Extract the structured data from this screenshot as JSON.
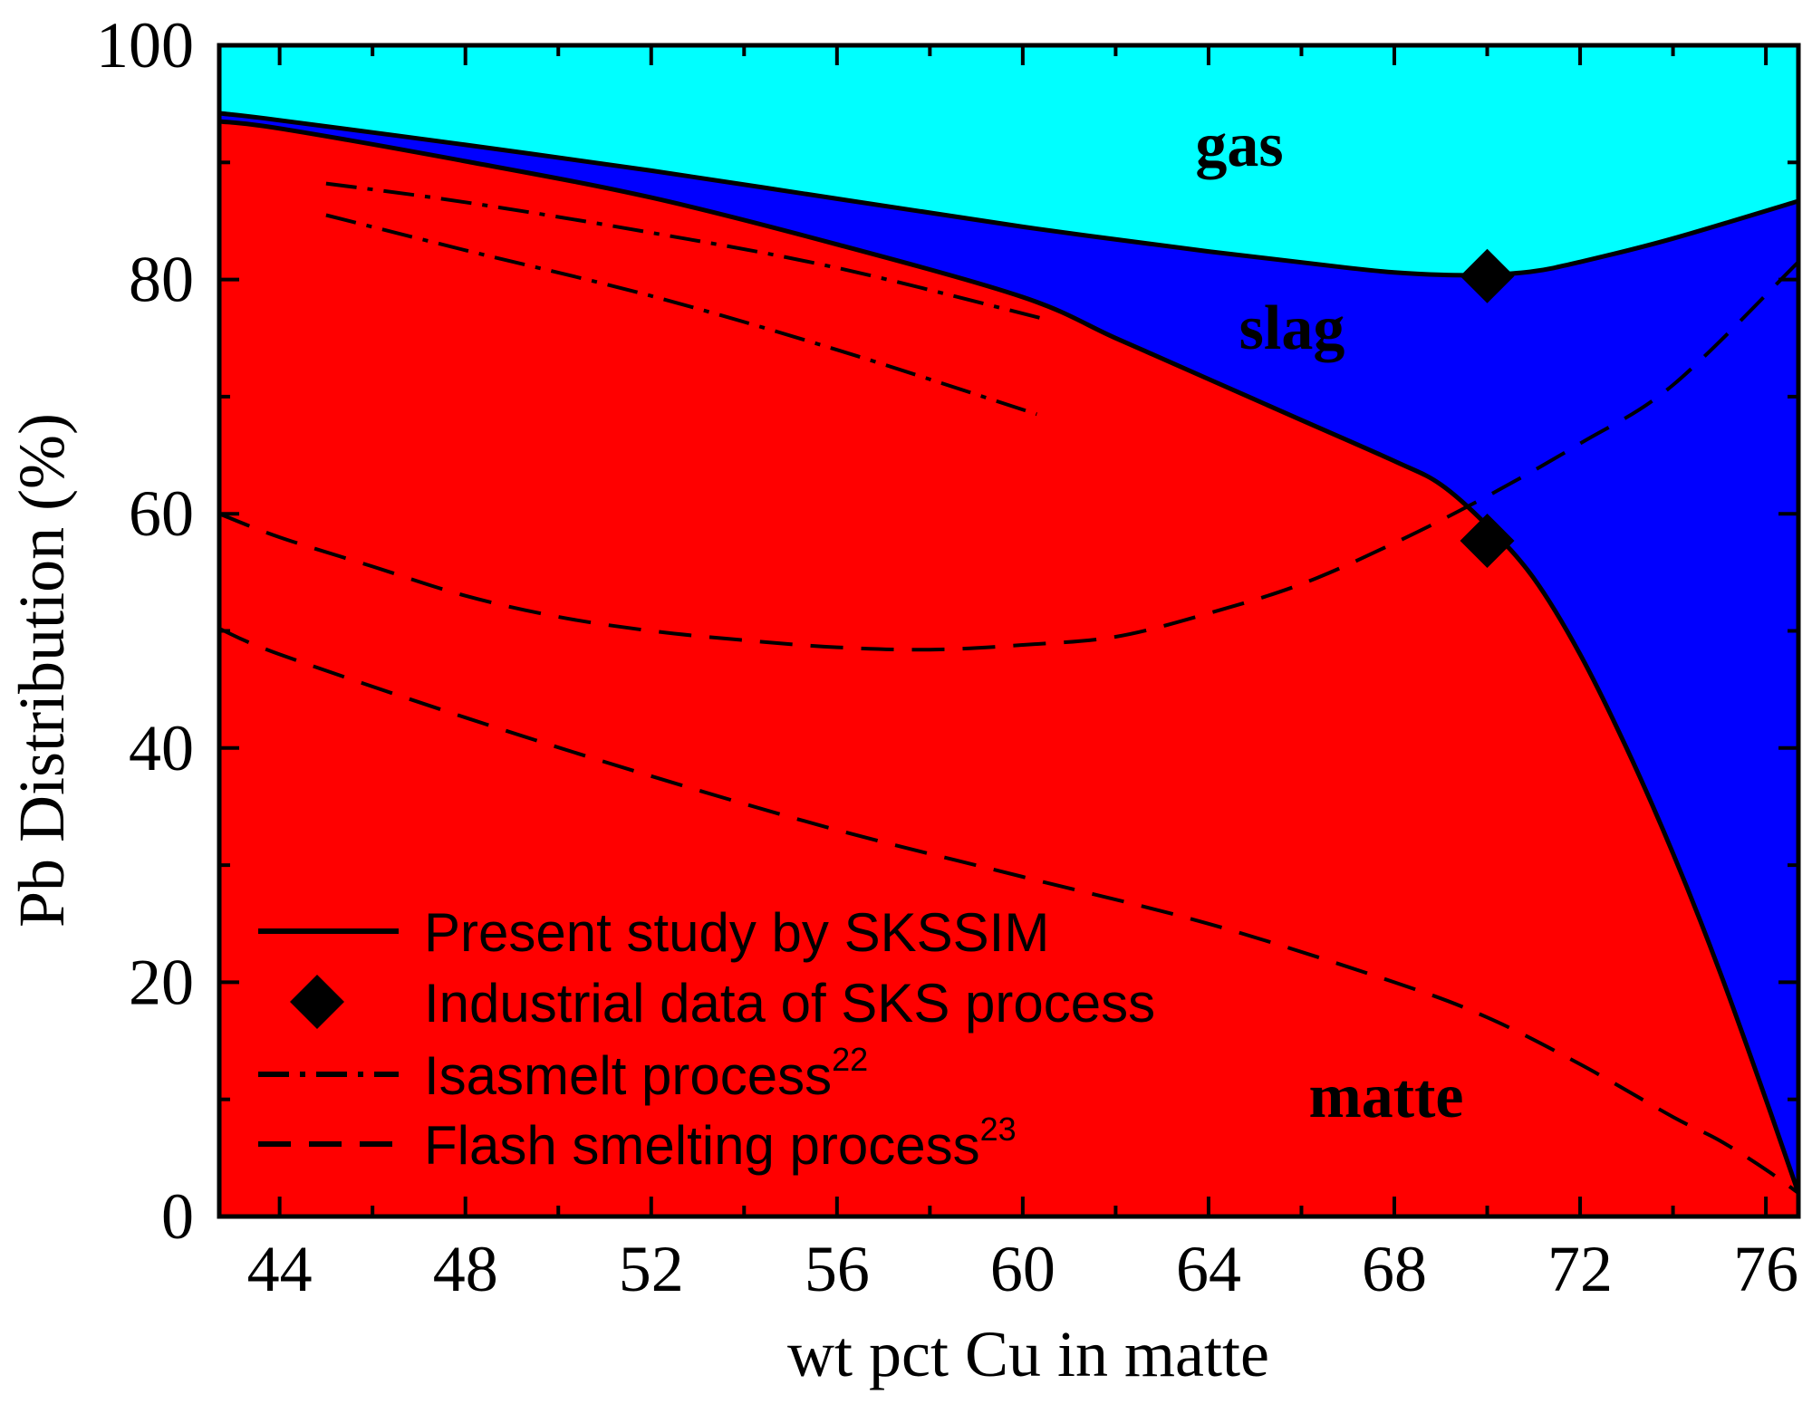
{
  "chart_data": {
    "type": "area",
    "title": "",
    "xlabel": "wt pct Cu in matte",
    "ylabel": "Pb Distribution (%)",
    "xlim": [
      42.7,
      76.7
    ],
    "ylim": [
      0,
      100
    ],
    "xticks": [
      44,
      48,
      52,
      56,
      60,
      64,
      68,
      72,
      76
    ],
    "yticks": [
      0,
      20,
      40,
      60,
      80,
      100
    ],
    "colors": {
      "gas": "#00ffff",
      "slag": "#0000ff",
      "matte": "#ff0000",
      "line": "#000000"
    },
    "regions": [
      {
        "name": "gas",
        "label": "gas"
      },
      {
        "name": "slag",
        "label": "slag"
      },
      {
        "name": "matte",
        "label": "matte"
      }
    ],
    "series": [
      {
        "name": "Present study by SKSSIM (gas/slag boundary)",
        "style": "solid",
        "x": [
          42.7,
          44,
          48,
          52,
          56,
          60,
          64,
          67,
          68,
          69,
          70,
          71,
          72,
          74,
          76.7
        ],
        "y": [
          94.2,
          93.6,
          91.5,
          89.3,
          86.9,
          84.5,
          82.4,
          81.0,
          80.6,
          80.4,
          80.4,
          80.7,
          81.5,
          83.5,
          86.7
        ]
      },
      {
        "name": "Present study by SKSSIM (slag/matte boundary)",
        "style": "solid",
        "x": [
          42.7,
          44,
          48,
          52,
          56,
          60,
          62,
          64,
          66,
          68,
          69,
          70,
          71,
          72,
          73,
          74,
          75,
          76,
          76.7
        ],
        "y": [
          93.5,
          92.9,
          90.1,
          87.0,
          83.0,
          78.5,
          75.0,
          71.5,
          68.0,
          64.5,
          62.5,
          59.0,
          54.5,
          48.0,
          40.0,
          31.0,
          21.0,
          10.0,
          2.0
        ]
      },
      {
        "name": "Industrial data of SKS process",
        "style": "marker",
        "marker": "diamond",
        "x": [
          70.0,
          70.0
        ],
        "y": [
          80.3,
          57.7
        ]
      },
      {
        "name": "Isasmelt process (upper)",
        "style": "dashdot",
        "x": [
          45.0,
          48,
          52,
          56,
          60.5
        ],
        "y": [
          88.2,
          86.6,
          84.0,
          81.0,
          76.6
        ]
      },
      {
        "name": "Isasmelt process (lower)",
        "style": "dashdot",
        "x": [
          45.0,
          48,
          52,
          56,
          60.3
        ],
        "y": [
          85.5,
          82.5,
          78.6,
          74.0,
          68.5
        ]
      },
      {
        "name": "Flash smelting process (upper)",
        "style": "dashed",
        "x": [
          42.7,
          44,
          46,
          48,
          50,
          52,
          54,
          56,
          58,
          60,
          62,
          64,
          66,
          68,
          70,
          72,
          74,
          76.7
        ],
        "y": [
          60.0,
          58.0,
          55.5,
          53.0,
          51.2,
          50.0,
          49.2,
          48.6,
          48.4,
          48.8,
          49.5,
          51.5,
          54.0,
          57.5,
          61.5,
          66.0,
          71.0,
          81.5
        ]
      },
      {
        "name": "Flash smelting process (lower)",
        "style": "dashed",
        "x": [
          42.7,
          44,
          48,
          52,
          56,
          60,
          64,
          68,
          70,
          72,
          74,
          75,
          76,
          76.7
        ],
        "y": [
          50.2,
          48.0,
          42.6,
          37.6,
          33.0,
          29.0,
          25.0,
          20.0,
          17.0,
          13.0,
          8.5,
          6.5,
          4.0,
          2.0
        ]
      }
    ],
    "legend": {
      "placement": "bottom-left",
      "entries": [
        {
          "style": "solid",
          "text": "Present study by SKSSIM",
          "sup": ""
        },
        {
          "style": "marker",
          "text": "Industrial data of SKS process",
          "sup": ""
        },
        {
          "style": "dashdot",
          "text": "Isasmelt process",
          "sup": "22"
        },
        {
          "style": "dashed",
          "text": "Flash smelting process",
          "sup": "23"
        }
      ]
    }
  }
}
